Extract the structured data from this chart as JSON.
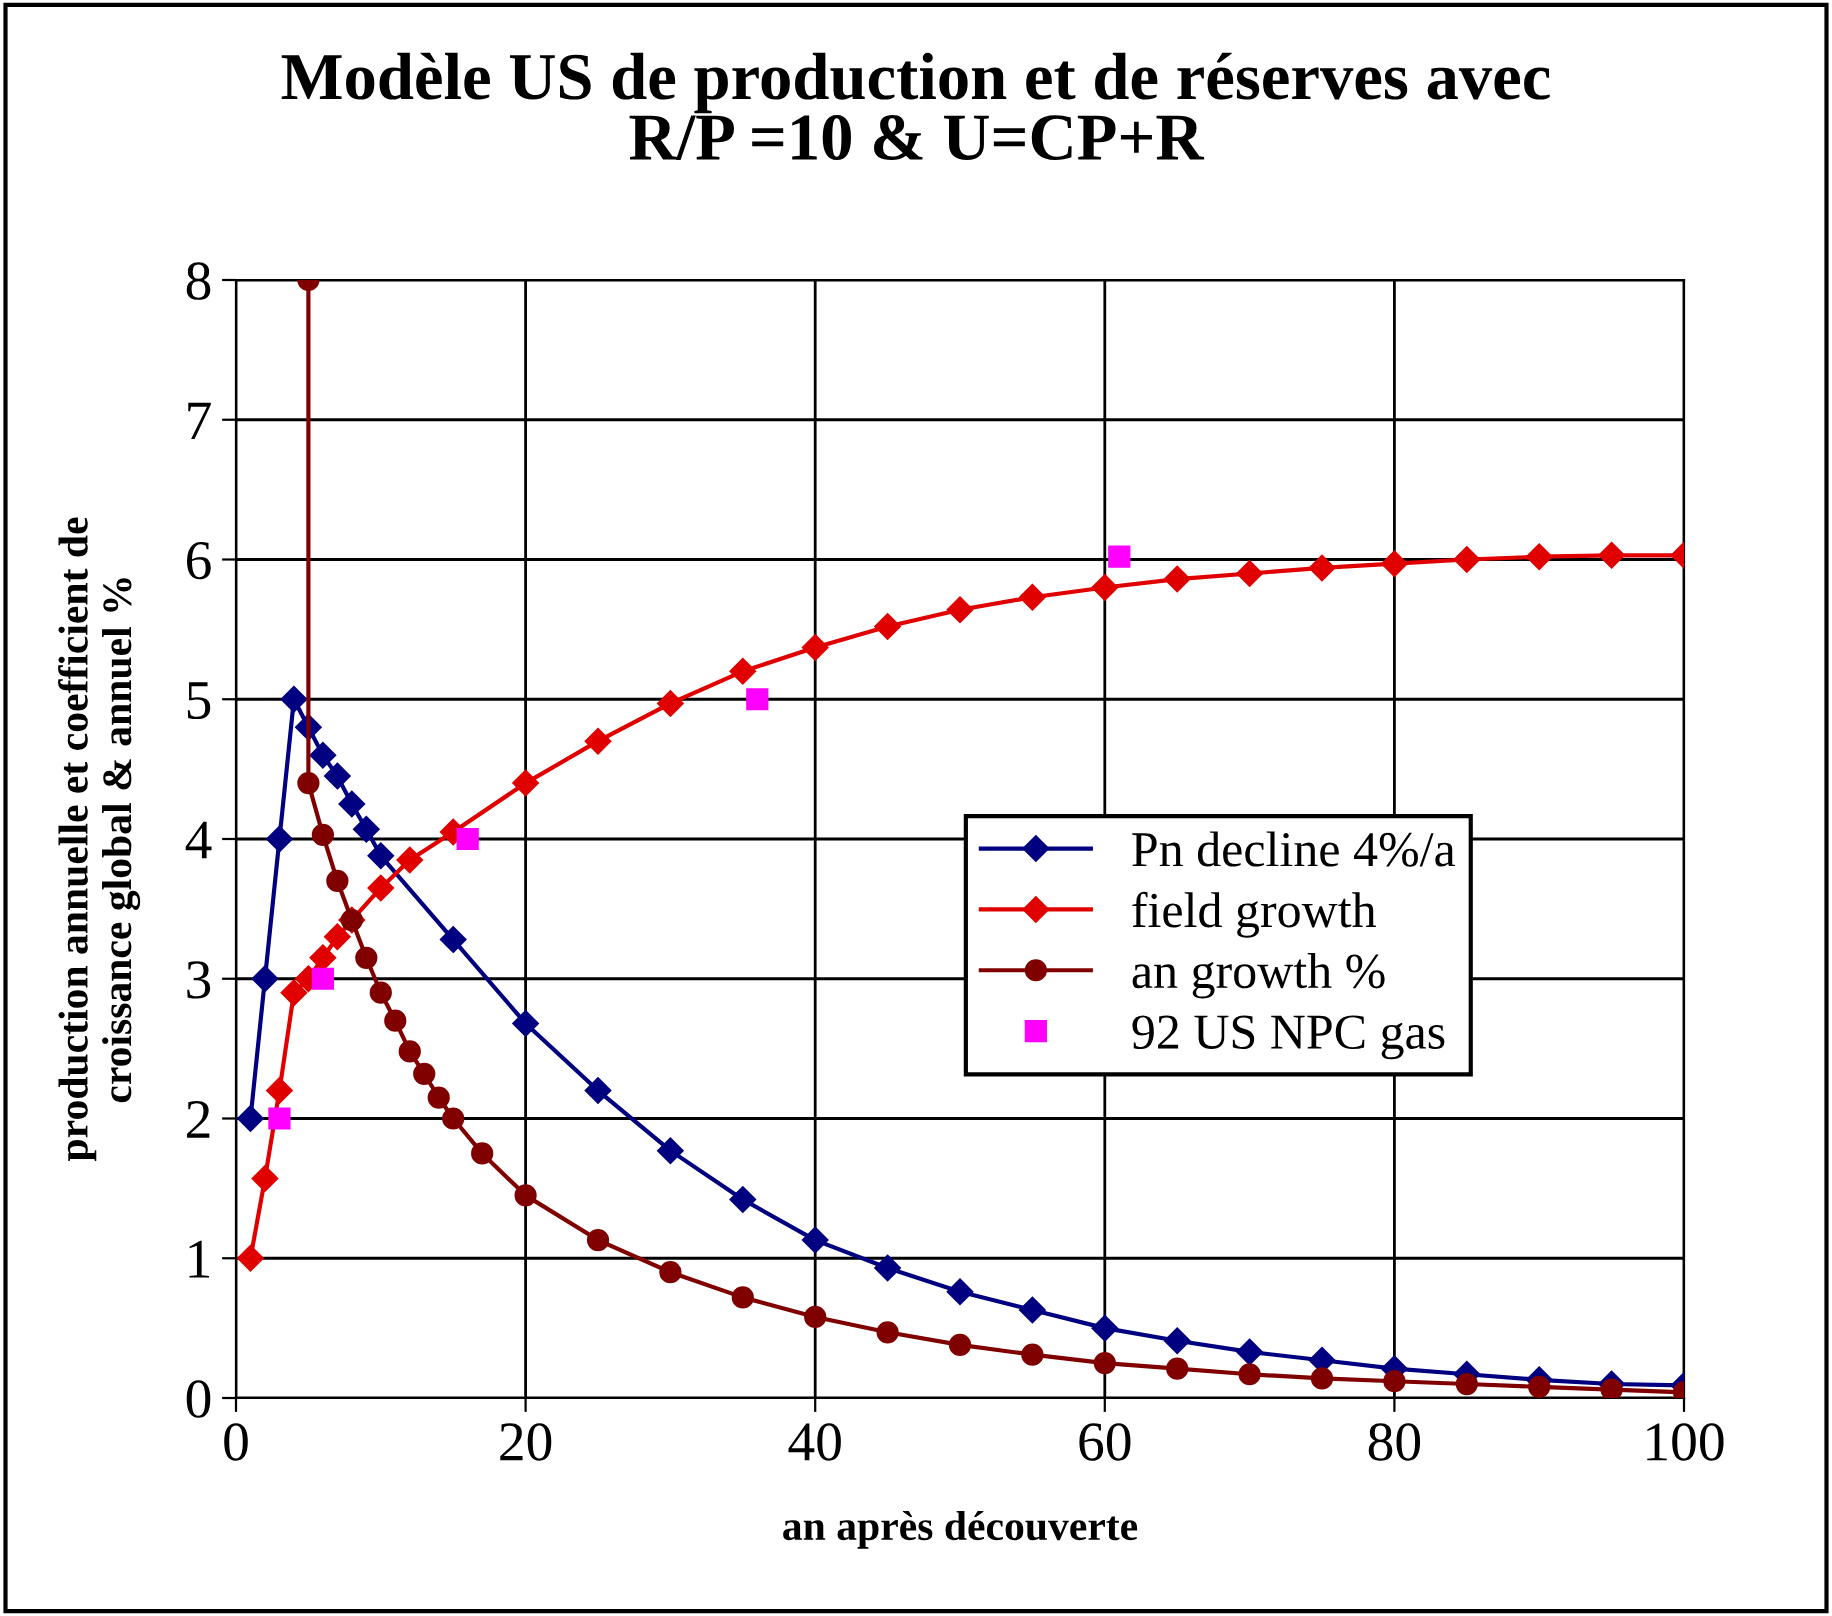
{
  "chart_data": {
    "type": "line",
    "title": "Modèle US de production et de réserves avec\nR/P =10 & U=CP+R",
    "xlabel": "an après découverte",
    "ylabel": "production annuelle et coefficient de\ncroissance global & annuel %",
    "xlim": [
      0,
      100
    ],
    "xticks": [
      0,
      20,
      40,
      60,
      80,
      100
    ],
    "ylim": [
      0,
      8
    ],
    "yticks": [
      0,
      1,
      2,
      3,
      4,
      5,
      6,
      7,
      8
    ],
    "grid": true,
    "legend": "right",
    "series": [
      {
        "name": "Pn decline 4%/a",
        "color": "#000080",
        "marker": "diamond",
        "x": [
          1,
          2,
          3,
          4,
          5,
          6,
          7,
          8,
          9,
          10,
          15,
          20,
          25,
          30,
          35,
          40,
          45,
          50,
          55,
          60,
          65,
          70,
          75,
          80,
          85,
          90,
          95,
          100
        ],
        "values": [
          2,
          3,
          4,
          5,
          4.8,
          4.6,
          4.45,
          4.25,
          4.07,
          3.88,
          3.28,
          2.68,
          2.2,
          1.77,
          1.42,
          1.13,
          0.93,
          0.76,
          0.63,
          0.5,
          0.41,
          0.33,
          0.27,
          0.21,
          0.17,
          0.13,
          0.1,
          0.09
        ]
      },
      {
        "name": "field growth",
        "color": "#e00000",
        "marker": "diamond",
        "x": [
          1,
          2,
          3,
          4,
          5,
          6,
          7,
          8,
          10,
          12,
          15,
          20,
          25,
          30,
          35,
          40,
          45,
          50,
          55,
          60,
          65,
          70,
          75,
          80,
          85,
          90,
          95,
          100
        ],
        "values": [
          1,
          1.57,
          2.2,
          2.9,
          3.0,
          3.15,
          3.3,
          3.42,
          3.65,
          3.85,
          4.05,
          4.4,
          4.7,
          4.97,
          5.2,
          5.37,
          5.52,
          5.64,
          5.73,
          5.8,
          5.86,
          5.9,
          5.94,
          5.97,
          6.0,
          6.02,
          6.03,
          6.03
        ]
      },
      {
        "name": "an growth %",
        "color": "#800000",
        "marker": "circle",
        "x": [
          5,
          5,
          6,
          7,
          8,
          9,
          10,
          11,
          12,
          13,
          14,
          15,
          17,
          20,
          25,
          30,
          35,
          40,
          45,
          50,
          55,
          60,
          65,
          70,
          75,
          80,
          85,
          90,
          95,
          100
        ],
        "values": [
          8,
          4.4,
          4.03,
          3.7,
          3.42,
          3.15,
          2.9,
          2.7,
          2.48,
          2.32,
          2.15,
          2.0,
          1.75,
          1.45,
          1.13,
          0.9,
          0.72,
          0.58,
          0.47,
          0.38,
          0.31,
          0.25,
          0.21,
          0.17,
          0.14,
          0.12,
          0.1,
          0.08,
          0.06,
          0.04
        ]
      },
      {
        "name": "92 US NPC gas",
        "type": "scatter",
        "color": "#ff00ff",
        "marker": "square",
        "x": [
          3,
          6,
          16,
          36,
          61
        ],
        "values": [
          2,
          3,
          4,
          5,
          6.02
        ]
      }
    ]
  }
}
